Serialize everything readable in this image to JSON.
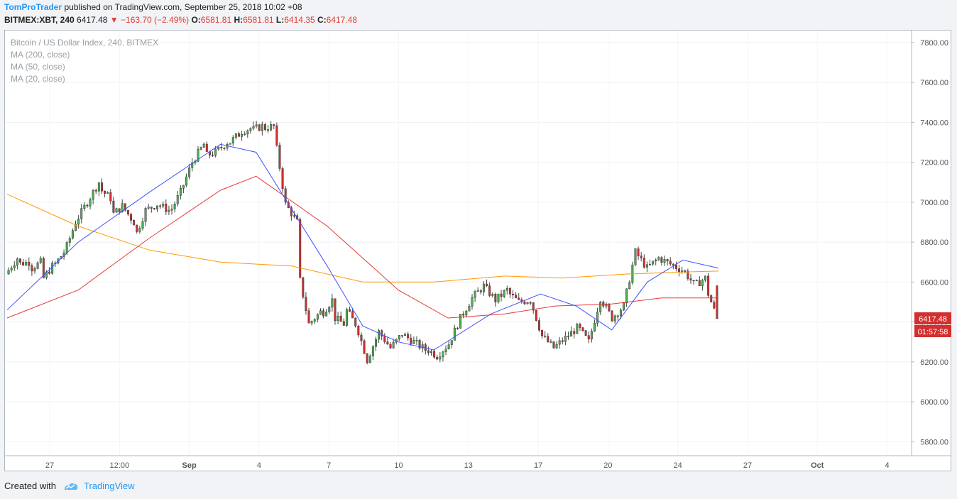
{
  "header": {
    "author": "TomProTrader",
    "published_text": "published on TradingView.com, September 25, 2018 10:02 +08",
    "symbol": "BITMEX:XBT, 240",
    "last": "6417.48",
    "change_arrow": "▼",
    "change": "−163.70 (−2.49%)",
    "o_label": "O:",
    "o_value": "6581.81",
    "h_label": "H:",
    "h_value": "6581.81",
    "l_label": "L:",
    "l_value": "6414.35",
    "c_label": "C:",
    "c_value": "6417.48"
  },
  "legend": {
    "title": "Bitcoin / US Dollar Index, 240, BITMEX",
    "ma200": "MA (200, close)",
    "ma50": "MA (50, close)",
    "ma20": "MA (20, close)"
  },
  "price_badge": {
    "price": "6417.48",
    "countdown": "01:57:58",
    "color": "#d32f2f"
  },
  "footer": {
    "created_with": "Created with",
    "brand": "TradingView"
  },
  "colors": {
    "up": "#4caf50",
    "down": "#d32f2f",
    "ma200": "#ff9800",
    "ma50": "#e53935",
    "ma20": "#3f51ff"
  },
  "chart_data": {
    "type": "candlestick",
    "interval": "240",
    "ylim": [
      5730,
      7860
    ],
    "y_ticks": [
      5800,
      6000,
      6200,
      6400,
      6600,
      6800,
      7000,
      7200,
      7400,
      7600,
      7800
    ],
    "y_tick_labels": [
      "5800.00",
      "6000.00",
      "6200.00",
      "6400.00",
      "6600.00",
      "6800.00",
      "7000.00",
      "7200.00",
      "7400.00",
      "7600.00",
      "7800.00"
    ],
    "x_ticks": [
      {
        "label": "27",
        "bold": false
      },
      {
        "label": "12:00",
        "bold": false
      },
      {
        "label": "Sep",
        "bold": true
      },
      {
        "label": "4",
        "bold": false
      },
      {
        "label": "7",
        "bold": false
      },
      {
        "label": "10",
        "bold": false
      },
      {
        "label": "13",
        "bold": false
      },
      {
        "label": "17",
        "bold": false
      },
      {
        "label": "20",
        "bold": false
      },
      {
        "label": "24",
        "bold": false
      },
      {
        "label": "27",
        "bold": false
      },
      {
        "label": "Oct",
        "bold": true
      },
      {
        "label": "4",
        "bold": false
      }
    ],
    "anchors": [
      [
        6640,
        6720
      ],
      [
        6690,
        6700
      ],
      [
        6660,
        6700
      ],
      [
        6600,
        6680
      ],
      [
        6670,
        6750
      ],
      [
        6740,
        6900
      ],
      [
        6900,
        7000
      ],
      [
        7000,
        7100
      ],
      [
        7070,
        7020
      ],
      [
        6930,
        6980
      ],
      [
        6980,
        6900
      ],
      [
        6810,
        6960
      ],
      [
        6960,
        6990
      ],
      [
        6990,
        6960
      ],
      [
        6940,
        7050
      ],
      [
        7050,
        7200
      ],
      [
        7200,
        7290
      ],
      [
        7230,
        7250
      ],
      [
        7250,
        7300
      ],
      [
        7290,
        7340
      ],
      [
        7350,
        7370
      ],
      [
        7360,
        7380
      ],
      [
        7370,
        7380
      ],
      [
        7360,
        6990
      ],
      [
        6990,
        6900
      ],
      [
        6680,
        6390
      ],
      [
        6390,
        6450
      ],
      [
        6430,
        6510
      ],
      [
        6430,
        6390
      ],
      [
        6480,
        6390
      ],
      [
        6400,
        6210
      ],
      [
        6210,
        6350
      ],
      [
        6350,
        6270
      ],
      [
        6270,
        6340
      ],
      [
        6340,
        6300
      ],
      [
        6300,
        6260
      ],
      [
        6270,
        6230
      ],
      [
        6230,
        6290
      ],
      [
        6290,
        6420
      ],
      [
        6420,
        6520
      ],
      [
        6520,
        6580
      ],
      [
        6580,
        6510
      ],
      [
        6510,
        6560
      ],
      [
        6550,
        6500
      ],
      [
        6500,
        6510
      ],
      [
        6510,
        6330
      ],
      [
        6330,
        6270
      ],
      [
        6270,
        6320
      ],
      [
        6320,
        6370
      ],
      [
        6380,
        6300
      ],
      [
        6300,
        6520
      ],
      [
        6520,
        6420
      ],
      [
        6420,
        6480
      ],
      [
        6480,
        6750
      ],
      [
        6750,
        6670
      ],
      [
        6670,
        6720
      ],
      [
        6720,
        6690
      ],
      [
        6690,
        6660
      ],
      [
        6670,
        6590
      ],
      [
        6580,
        6620
      ],
      [
        6581.81,
        6417.48
      ]
    ],
    "ma200": [
      [
        0,
        7040
      ],
      [
        0.1,
        6880
      ],
      [
        0.2,
        6760
      ],
      [
        0.3,
        6700
      ],
      [
        0.4,
        6680
      ],
      [
        0.5,
        6600
      ],
      [
        0.6,
        6600
      ],
      [
        0.7,
        6630
      ],
      [
        0.78,
        6620
      ],
      [
        0.87,
        6640
      ],
      [
        0.95,
        6650
      ],
      [
        1,
        6655
      ]
    ],
    "ma50": [
      [
        0,
        6420
      ],
      [
        0.1,
        6560
      ],
      [
        0.2,
        6820
      ],
      [
        0.3,
        7060
      ],
      [
        0.35,
        7130
      ],
      [
        0.45,
        6880
      ],
      [
        0.55,
        6560
      ],
      [
        0.62,
        6420
      ],
      [
        0.7,
        6440
      ],
      [
        0.77,
        6480
      ],
      [
        0.85,
        6490
      ],
      [
        0.92,
        6520
      ],
      [
        1,
        6520
      ]
    ],
    "ma20": [
      [
        0,
        6460
      ],
      [
        0.1,
        6800
      ],
      [
        0.2,
        7050
      ],
      [
        0.3,
        7290
      ],
      [
        0.35,
        7250
      ],
      [
        0.45,
        6680
      ],
      [
        0.5,
        6380
      ],
      [
        0.55,
        6300
      ],
      [
        0.6,
        6260
      ],
      [
        0.68,
        6440
      ],
      [
        0.75,
        6540
      ],
      [
        0.8,
        6480
      ],
      [
        0.85,
        6360
      ],
      [
        0.9,
        6600
      ],
      [
        0.95,
        6710
      ],
      [
        1,
        6670
      ]
    ]
  }
}
